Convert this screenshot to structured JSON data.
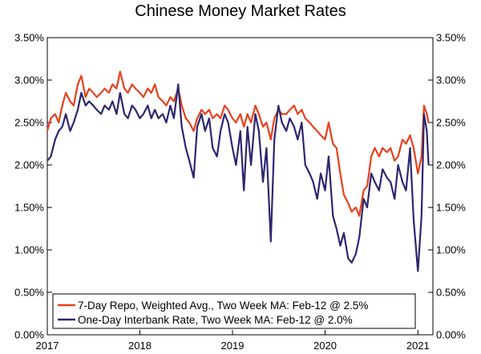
{
  "chart_data": {
    "type": "line",
    "title": "Chinese Money Market Rates",
    "xlabel": "",
    "ylabel": "",
    "x_range": [
      "2017-01-01",
      "2021-03-01"
    ],
    "x_tick_labels": [
      "2017",
      "2018",
      "2019",
      "2020",
      "2021"
    ],
    "ylim": [
      0,
      3.5
    ],
    "y_tick_labels": [
      "0.00%",
      "0.50%",
      "1.00%",
      "1.50%",
      "2.00%",
      "2.50%",
      "3.00%",
      "3.50%"
    ],
    "grid": false,
    "legend_position": "bottom-left",
    "series": [
      {
        "name": "7-Day Repo, Weighted Avg., Two Week MA: Feb-12 @ 2.5%",
        "color": "#e8401c",
        "points": [
          [
            "2017-01-01",
            2.4
          ],
          [
            "2017-01-15",
            2.55
          ],
          [
            "2017-02-01",
            2.6
          ],
          [
            "2017-02-15",
            2.5
          ],
          [
            "2017-03-01",
            2.7
          ],
          [
            "2017-03-15",
            2.85
          ],
          [
            "2017-04-01",
            2.75
          ],
          [
            "2017-04-15",
            2.7
          ],
          [
            "2017-05-01",
            2.95
          ],
          [
            "2017-05-15",
            3.05
          ],
          [
            "2017-06-01",
            2.8
          ],
          [
            "2017-06-15",
            2.9
          ],
          [
            "2017-07-01",
            2.85
          ],
          [
            "2017-07-15",
            2.8
          ],
          [
            "2017-08-01",
            2.85
          ],
          [
            "2017-08-15",
            2.9
          ],
          [
            "2017-09-01",
            2.85
          ],
          [
            "2017-09-15",
            2.95
          ],
          [
            "2017-10-01",
            2.9
          ],
          [
            "2017-10-15",
            3.1
          ],
          [
            "2017-11-01",
            2.9
          ],
          [
            "2017-11-15",
            2.85
          ],
          [
            "2017-12-01",
            2.95
          ],
          [
            "2017-12-15",
            2.9
          ],
          [
            "2018-01-01",
            2.85
          ],
          [
            "2018-01-15",
            2.8
          ],
          [
            "2018-02-01",
            2.9
          ],
          [
            "2018-02-15",
            2.85
          ],
          [
            "2018-03-01",
            2.95
          ],
          [
            "2018-03-15",
            2.8
          ],
          [
            "2018-04-01",
            2.75
          ],
          [
            "2018-04-15",
            2.7
          ],
          [
            "2018-05-01",
            2.8
          ],
          [
            "2018-05-15",
            2.75
          ],
          [
            "2018-06-01",
            2.9
          ],
          [
            "2018-06-15",
            2.7
          ],
          [
            "2018-07-01",
            2.55
          ],
          [
            "2018-07-15",
            2.5
          ],
          [
            "2018-08-01",
            2.4
          ],
          [
            "2018-08-15",
            2.55
          ],
          [
            "2018-09-01",
            2.65
          ],
          [
            "2018-09-15",
            2.6
          ],
          [
            "2018-10-01",
            2.65
          ],
          [
            "2018-10-15",
            2.55
          ],
          [
            "2018-11-01",
            2.6
          ],
          [
            "2018-11-15",
            2.55
          ],
          [
            "2018-12-01",
            2.7
          ],
          [
            "2018-12-15",
            2.65
          ],
          [
            "2019-01-01",
            2.55
          ],
          [
            "2019-01-15",
            2.5
          ],
          [
            "2019-02-01",
            2.6
          ],
          [
            "2019-02-15",
            2.45
          ],
          [
            "2019-03-01",
            2.6
          ],
          [
            "2019-03-15",
            2.5
          ],
          [
            "2019-04-01",
            2.7
          ],
          [
            "2019-04-15",
            2.6
          ],
          [
            "2019-05-01",
            2.45
          ],
          [
            "2019-05-15",
            2.5
          ],
          [
            "2019-06-01",
            2.3
          ],
          [
            "2019-06-15",
            2.55
          ],
          [
            "2019-07-01",
            2.65
          ],
          [
            "2019-07-15",
            2.6
          ],
          [
            "2019-08-01",
            2.6
          ],
          [
            "2019-08-15",
            2.65
          ],
          [
            "2019-09-01",
            2.7
          ],
          [
            "2019-09-15",
            2.6
          ],
          [
            "2019-10-01",
            2.65
          ],
          [
            "2019-10-15",
            2.55
          ],
          [
            "2019-11-01",
            2.5
          ],
          [
            "2019-11-15",
            2.45
          ],
          [
            "2019-12-01",
            2.4
          ],
          [
            "2019-12-15",
            2.35
          ],
          [
            "2020-01-01",
            2.3
          ],
          [
            "2020-01-15",
            2.5
          ],
          [
            "2020-02-01",
            2.25
          ],
          [
            "2020-02-15",
            2.2
          ],
          [
            "2020-03-01",
            1.9
          ],
          [
            "2020-03-15",
            1.65
          ],
          [
            "2020-04-01",
            1.55
          ],
          [
            "2020-04-15",
            1.45
          ],
          [
            "2020-05-01",
            1.5
          ],
          [
            "2020-05-15",
            1.4
          ],
          [
            "2020-06-01",
            1.7
          ],
          [
            "2020-06-15",
            1.75
          ],
          [
            "2020-07-01",
            2.1
          ],
          [
            "2020-07-15",
            2.2
          ],
          [
            "2020-08-01",
            2.1
          ],
          [
            "2020-08-15",
            2.2
          ],
          [
            "2020-09-01",
            2.15
          ],
          [
            "2020-09-15",
            2.2
          ],
          [
            "2020-10-01",
            2.05
          ],
          [
            "2020-10-15",
            2.1
          ],
          [
            "2020-11-01",
            2.3
          ],
          [
            "2020-11-15",
            2.25
          ],
          [
            "2020-12-01",
            2.35
          ],
          [
            "2020-12-15",
            2.2
          ],
          [
            "2021-01-01",
            1.9
          ],
          [
            "2021-01-15",
            2.1
          ],
          [
            "2021-01-25",
            2.7
          ],
          [
            "2021-02-05",
            2.6
          ],
          [
            "2021-02-12",
            2.5
          ]
        ]
      },
      {
        "name": "One-Day Interbank Rate, Two Week MA: Feb-12 @ 2.0%",
        "color": "#2d2670",
        "points": [
          [
            "2017-01-01",
            2.05
          ],
          [
            "2017-01-15",
            2.1
          ],
          [
            "2017-02-01",
            2.3
          ],
          [
            "2017-02-15",
            2.4
          ],
          [
            "2017-03-01",
            2.45
          ],
          [
            "2017-03-15",
            2.6
          ],
          [
            "2017-04-01",
            2.4
          ],
          [
            "2017-04-15",
            2.5
          ],
          [
            "2017-05-01",
            2.65
          ],
          [
            "2017-05-15",
            2.85
          ],
          [
            "2017-06-01",
            2.7
          ],
          [
            "2017-06-15",
            2.75
          ],
          [
            "2017-07-01",
            2.7
          ],
          [
            "2017-07-15",
            2.65
          ],
          [
            "2017-08-01",
            2.6
          ],
          [
            "2017-08-15",
            2.7
          ],
          [
            "2017-09-01",
            2.65
          ],
          [
            "2017-09-15",
            2.75
          ],
          [
            "2017-10-01",
            2.6
          ],
          [
            "2017-10-15",
            2.85
          ],
          [
            "2017-11-01",
            2.6
          ],
          [
            "2017-11-15",
            2.55
          ],
          [
            "2017-12-01",
            2.7
          ],
          [
            "2017-12-15",
            2.65
          ],
          [
            "2018-01-01",
            2.55
          ],
          [
            "2018-01-15",
            2.6
          ],
          [
            "2018-02-01",
            2.7
          ],
          [
            "2018-02-15",
            2.55
          ],
          [
            "2018-03-01",
            2.65
          ],
          [
            "2018-03-15",
            2.55
          ],
          [
            "2018-04-01",
            2.6
          ],
          [
            "2018-04-15",
            2.5
          ],
          [
            "2018-05-01",
            2.7
          ],
          [
            "2018-05-15",
            2.55
          ],
          [
            "2018-06-01",
            2.95
          ],
          [
            "2018-06-15",
            2.45
          ],
          [
            "2018-07-01",
            2.2
          ],
          [
            "2018-07-15",
            2.05
          ],
          [
            "2018-08-01",
            1.85
          ],
          [
            "2018-08-15",
            2.45
          ],
          [
            "2018-09-01",
            2.6
          ],
          [
            "2018-09-15",
            2.4
          ],
          [
            "2018-10-01",
            2.55
          ],
          [
            "2018-10-15",
            2.2
          ],
          [
            "2018-11-01",
            2.1
          ],
          [
            "2018-11-15",
            2.4
          ],
          [
            "2018-12-01",
            2.6
          ],
          [
            "2018-12-15",
            2.5
          ],
          [
            "2019-01-01",
            2.2
          ],
          [
            "2019-01-15",
            2.0
          ],
          [
            "2019-02-01",
            2.4
          ],
          [
            "2019-02-15",
            1.7
          ],
          [
            "2019-03-01",
            2.45
          ],
          [
            "2019-03-15",
            2.0
          ],
          [
            "2019-04-01",
            2.6
          ],
          [
            "2019-04-15",
            2.4
          ],
          [
            "2019-05-01",
            1.8
          ],
          [
            "2019-05-15",
            2.2
          ],
          [
            "2019-06-01",
            1.1
          ],
          [
            "2019-06-15",
            2.3
          ],
          [
            "2019-07-01",
            2.7
          ],
          [
            "2019-07-15",
            2.5
          ],
          [
            "2019-08-01",
            2.4
          ],
          [
            "2019-08-15",
            2.55
          ],
          [
            "2019-09-01",
            2.45
          ],
          [
            "2019-09-15",
            2.3
          ],
          [
            "2019-10-01",
            2.5
          ],
          [
            "2019-10-15",
            2.0
          ],
          [
            "2019-11-01",
            1.9
          ],
          [
            "2019-11-15",
            1.8
          ],
          [
            "2019-12-01",
            1.6
          ],
          [
            "2019-12-15",
            1.9
          ],
          [
            "2020-01-01",
            1.7
          ],
          [
            "2020-01-15",
            2.1
          ],
          [
            "2020-02-01",
            1.4
          ],
          [
            "2020-02-15",
            1.25
          ],
          [
            "2020-03-01",
            1.05
          ],
          [
            "2020-03-15",
            1.2
          ],
          [
            "2020-04-01",
            0.9
          ],
          [
            "2020-04-15",
            0.85
          ],
          [
            "2020-05-01",
            0.95
          ],
          [
            "2020-05-15",
            1.15
          ],
          [
            "2020-06-01",
            1.6
          ],
          [
            "2020-06-15",
            1.5
          ],
          [
            "2020-07-01",
            1.9
          ],
          [
            "2020-07-15",
            1.8
          ],
          [
            "2020-08-01",
            1.7
          ],
          [
            "2020-08-15",
            1.95
          ],
          [
            "2020-09-01",
            1.85
          ],
          [
            "2020-09-15",
            1.8
          ],
          [
            "2020-10-01",
            1.6
          ],
          [
            "2020-10-15",
            2.0
          ],
          [
            "2020-11-01",
            1.8
          ],
          [
            "2020-11-15",
            1.7
          ],
          [
            "2020-12-01",
            2.2
          ],
          [
            "2020-12-15",
            1.35
          ],
          [
            "2021-01-01",
            0.75
          ],
          [
            "2021-01-15",
            1.4
          ],
          [
            "2021-01-25",
            2.6
          ],
          [
            "2021-02-05",
            2.4
          ],
          [
            "2021-02-12",
            2.0
          ]
        ]
      }
    ]
  }
}
